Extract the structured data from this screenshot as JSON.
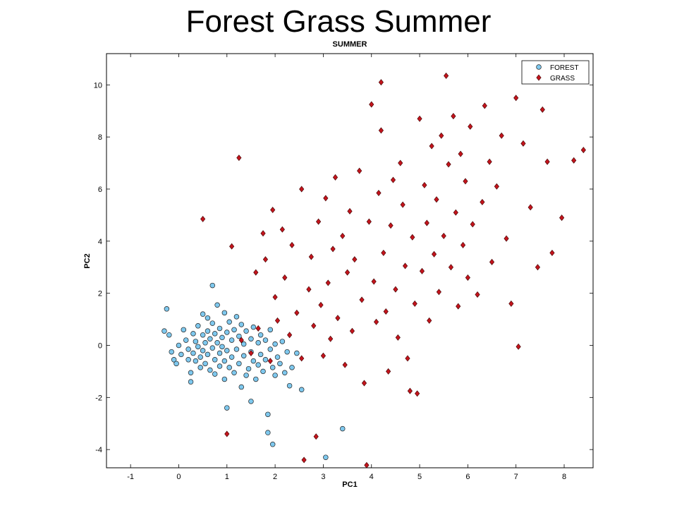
{
  "slide": {
    "title": "Forest Grass Summer"
  },
  "chart_data": {
    "type": "scatter",
    "title": "SUMMER",
    "xlabel": "PC1",
    "ylabel": "PC2",
    "xlim": [
      -1.5,
      8.6
    ],
    "ylim": [
      -4.7,
      11.2
    ],
    "xticks": [
      -1,
      0,
      1,
      2,
      3,
      4,
      5,
      6,
      7,
      8
    ],
    "yticks": [
      -4,
      -2,
      0,
      2,
      4,
      6,
      8,
      10
    ],
    "grid": false,
    "legend_position": "top-right",
    "series": [
      {
        "name": "FOREST",
        "marker": "circle",
        "color": "#7ec8ee",
        "points": [
          [
            -0.25,
            1.4
          ],
          [
            -0.3,
            0.55
          ],
          [
            -0.2,
            0.4
          ],
          [
            -0.15,
            -0.25
          ],
          [
            -0.1,
            -0.55
          ],
          [
            -0.05,
            -0.7
          ],
          [
            0.0,
            0.0
          ],
          [
            0.05,
            -0.35
          ],
          [
            0.1,
            0.6
          ],
          [
            0.15,
            0.2
          ],
          [
            0.2,
            -0.15
          ],
          [
            0.2,
            -0.55
          ],
          [
            0.25,
            -1.05
          ],
          [
            0.25,
            -1.4
          ],
          [
            0.3,
            0.45
          ],
          [
            0.3,
            -0.3
          ],
          [
            0.35,
            0.15
          ],
          [
            0.35,
            -0.6
          ],
          [
            0.4,
            0.75
          ],
          [
            0.4,
            -0.05
          ],
          [
            0.45,
            -0.45
          ],
          [
            0.45,
            -0.85
          ],
          [
            0.5,
            1.2
          ],
          [
            0.5,
            0.4
          ],
          [
            0.5,
            -0.2
          ],
          [
            0.55,
            0.1
          ],
          [
            0.55,
            -0.7
          ],
          [
            0.6,
            1.05
          ],
          [
            0.6,
            0.55
          ],
          [
            0.6,
            -0.35
          ],
          [
            0.65,
            0.25
          ],
          [
            0.65,
            -0.95
          ],
          [
            0.7,
            2.3
          ],
          [
            0.7,
            0.85
          ],
          [
            0.7,
            -0.1
          ],
          [
            0.75,
            0.45
          ],
          [
            0.75,
            -0.55
          ],
          [
            0.75,
            -1.1
          ],
          [
            0.8,
            1.55
          ],
          [
            0.8,
            0.1
          ],
          [
            0.85,
            0.65
          ],
          [
            0.85,
            -0.3
          ],
          [
            0.85,
            -0.8
          ],
          [
            0.9,
            0.3
          ],
          [
            0.9,
            -0.05
          ],
          [
            0.95,
            1.25
          ],
          [
            0.95,
            -0.6
          ],
          [
            0.95,
            -1.3
          ],
          [
            1.0,
            0.5
          ],
          [
            1.0,
            -0.2
          ],
          [
            1.0,
            -2.4
          ],
          [
            1.05,
            0.9
          ],
          [
            1.05,
            -0.85
          ],
          [
            1.1,
            0.2
          ],
          [
            1.1,
            -0.45
          ],
          [
            1.15,
            0.6
          ],
          [
            1.15,
            -1.05
          ],
          [
            1.2,
            1.1
          ],
          [
            1.2,
            -0.15
          ],
          [
            1.25,
            0.35
          ],
          [
            1.25,
            -0.7
          ],
          [
            1.3,
            -1.6
          ],
          [
            1.3,
            0.8
          ],
          [
            1.35,
            0.05
          ],
          [
            1.35,
            -0.4
          ],
          [
            1.4,
            0.55
          ],
          [
            1.4,
            -1.15
          ],
          [
            1.45,
            -0.9
          ],
          [
            1.5,
            0.25
          ],
          [
            1.5,
            -0.25
          ],
          [
            1.5,
            -2.15
          ],
          [
            1.55,
            0.7
          ],
          [
            1.55,
            -0.6
          ],
          [
            1.6,
            -1.3
          ],
          [
            1.65,
            0.1
          ],
          [
            1.65,
            -0.75
          ],
          [
            1.7,
            0.4
          ],
          [
            1.7,
            -0.35
          ],
          [
            1.75,
            -1.0
          ],
          [
            1.8,
            0.2
          ],
          [
            1.8,
            -0.55
          ],
          [
            1.85,
            -2.65
          ],
          [
            1.85,
            -3.35
          ],
          [
            1.9,
            0.6
          ],
          [
            1.9,
            -0.15
          ],
          [
            1.95,
            -0.85
          ],
          [
            1.95,
            -3.8
          ],
          [
            2.0,
            0.05
          ],
          [
            2.0,
            -1.15
          ],
          [
            2.05,
            -0.45
          ],
          [
            2.1,
            -0.7
          ],
          [
            2.15,
            0.15
          ],
          [
            2.2,
            -1.05
          ],
          [
            2.25,
            -0.25
          ],
          [
            2.3,
            -1.55
          ],
          [
            2.35,
            -0.85
          ],
          [
            2.45,
            -0.3
          ],
          [
            2.55,
            -1.7
          ],
          [
            3.05,
            -4.3
          ],
          [
            3.4,
            -3.2
          ]
        ]
      },
      {
        "name": "GRASS",
        "marker": "diamond",
        "color": "#c3141c",
        "points": [
          [
            0.5,
            4.85
          ],
          [
            1.0,
            -3.4
          ],
          [
            1.1,
            3.8
          ],
          [
            1.25,
            7.2
          ],
          [
            1.3,
            0.2
          ],
          [
            1.5,
            -0.3
          ],
          [
            1.6,
            2.8
          ],
          [
            1.65,
            0.65
          ],
          [
            1.75,
            4.3
          ],
          [
            1.8,
            3.3
          ],
          [
            1.9,
            -0.6
          ],
          [
            1.95,
            5.2
          ],
          [
            2.0,
            1.85
          ],
          [
            2.05,
            0.95
          ],
          [
            2.15,
            4.45
          ],
          [
            2.2,
            2.6
          ],
          [
            2.3,
            0.4
          ],
          [
            2.35,
            3.85
          ],
          [
            2.45,
            1.25
          ],
          [
            2.55,
            -0.5
          ],
          [
            2.55,
            6.0
          ],
          [
            2.6,
            -4.4
          ],
          [
            2.7,
            2.15
          ],
          [
            2.75,
            3.4
          ],
          [
            2.8,
            0.75
          ],
          [
            2.85,
            -3.5
          ],
          [
            2.9,
            4.75
          ],
          [
            2.95,
            1.55
          ],
          [
            3.0,
            -0.4
          ],
          [
            3.05,
            5.65
          ],
          [
            3.1,
            2.4
          ],
          [
            3.15,
            0.25
          ],
          [
            3.2,
            3.7
          ],
          [
            3.25,
            6.45
          ],
          [
            3.3,
            1.05
          ],
          [
            3.4,
            4.2
          ],
          [
            3.45,
            -0.75
          ],
          [
            3.5,
            2.8
          ],
          [
            3.55,
            5.15
          ],
          [
            3.6,
            0.55
          ],
          [
            3.65,
            3.3
          ],
          [
            3.75,
            6.7
          ],
          [
            3.8,
            1.75
          ],
          [
            3.85,
            -1.45
          ],
          [
            3.9,
            -4.6
          ],
          [
            3.95,
            4.75
          ],
          [
            4.0,
            9.25
          ],
          [
            4.05,
            2.45
          ],
          [
            4.1,
            0.9
          ],
          [
            4.15,
            5.85
          ],
          [
            4.2,
            10.1
          ],
          [
            4.2,
            8.25
          ],
          [
            4.25,
            3.55
          ],
          [
            4.3,
            1.3
          ],
          [
            4.35,
            -1.0
          ],
          [
            4.4,
            4.6
          ],
          [
            4.45,
            6.35
          ],
          [
            4.5,
            2.15
          ],
          [
            4.55,
            0.3
          ],
          [
            4.6,
            7.0
          ],
          [
            4.65,
            5.4
          ],
          [
            4.7,
            3.05
          ],
          [
            4.75,
            -0.5
          ],
          [
            4.8,
            -1.75
          ],
          [
            4.85,
            4.15
          ],
          [
            4.9,
            1.6
          ],
          [
            4.95,
            -1.85
          ],
          [
            5.0,
            8.7
          ],
          [
            5.05,
            2.85
          ],
          [
            5.1,
            6.15
          ],
          [
            5.15,
            4.7
          ],
          [
            5.2,
            0.95
          ],
          [
            5.25,
            7.65
          ],
          [
            5.3,
            3.5
          ],
          [
            5.35,
            5.6
          ],
          [
            5.4,
            2.05
          ],
          [
            5.45,
            8.05
          ],
          [
            5.5,
            4.2
          ],
          [
            5.55,
            10.35
          ],
          [
            5.6,
            6.95
          ],
          [
            5.65,
            3.0
          ],
          [
            5.7,
            8.8
          ],
          [
            5.75,
            5.1
          ],
          [
            5.8,
            1.5
          ],
          [
            5.85,
            7.35
          ],
          [
            5.9,
            3.85
          ],
          [
            5.95,
            6.3
          ],
          [
            6.0,
            2.6
          ],
          [
            6.05,
            8.4
          ],
          [
            6.1,
            4.65
          ],
          [
            6.2,
            1.95
          ],
          [
            6.3,
            5.5
          ],
          [
            6.35,
            9.2
          ],
          [
            6.45,
            7.05
          ],
          [
            6.5,
            3.2
          ],
          [
            6.6,
            6.1
          ],
          [
            6.7,
            8.05
          ],
          [
            6.8,
            4.1
          ],
          [
            6.9,
            1.6
          ],
          [
            7.0,
            9.5
          ],
          [
            7.05,
            -0.05
          ],
          [
            7.15,
            7.75
          ],
          [
            7.3,
            5.3
          ],
          [
            7.45,
            3.0
          ],
          [
            7.55,
            9.05
          ],
          [
            7.65,
            7.05
          ],
          [
            7.75,
            3.55
          ],
          [
            7.95,
            4.9
          ],
          [
            8.2,
            7.1
          ],
          [
            8.4,
            7.5
          ]
        ]
      }
    ]
  }
}
